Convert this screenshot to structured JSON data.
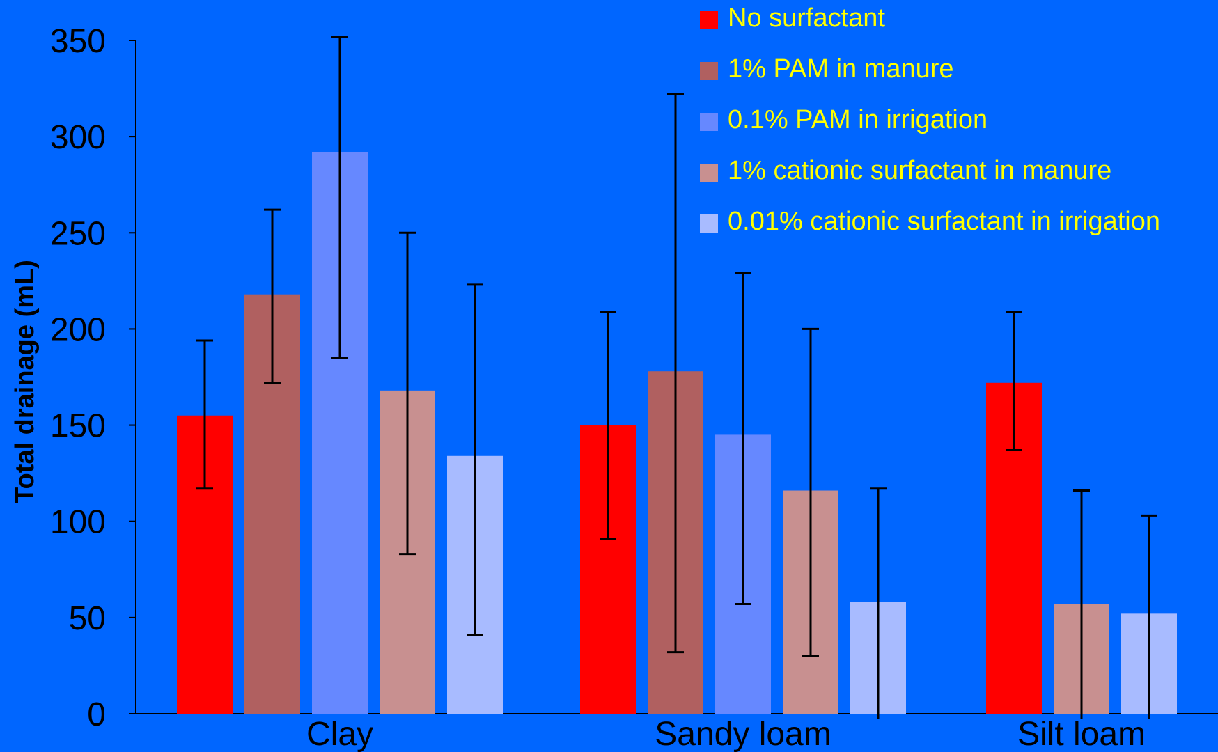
{
  "chart_data": {
    "type": "bar",
    "ylabel": "Total drainage (mL)",
    "xlabel": "",
    "ylim": [
      0,
      350
    ],
    "yticks": [
      0,
      50,
      100,
      150,
      200,
      250,
      300,
      350
    ],
    "categories": [
      "Clay",
      "Sandy loam",
      "Silt loam"
    ],
    "legend_position": "top-right",
    "grid": false,
    "background_color": "#0066FF",
    "series": [
      {
        "name": "No surfactant",
        "color": "#FF0000",
        "values": [
          155,
          150,
          172
        ],
        "error_low": [
          117,
          91,
          137
        ],
        "error_high": [
          194,
          209,
          209
        ]
      },
      {
        "name": "1% PAM in manure",
        "color": "#B06060",
        "values": [
          218,
          178,
          null
        ],
        "error_low": [
          172,
          32,
          null
        ],
        "error_high": [
          262,
          322,
          null
        ]
      },
      {
        "name": "0.1% PAM in irrigation",
        "color": "#6688FF",
        "values": [
          292,
          145,
          null
        ],
        "error_low": [
          185,
          57,
          null
        ],
        "error_high": [
          352,
          229,
          null
        ]
      },
      {
        "name": "1% cationic surfactant in manure",
        "color": "#C89090",
        "values": [
          168,
          116,
          57
        ],
        "error_low": [
          83,
          30,
          0
        ],
        "error_high": [
          250,
          200,
          116
        ]
      },
      {
        "name": "0.01% cationic surfactant in irrigation",
        "color": "#A8BBFF",
        "values": [
          134,
          58,
          52
        ],
        "error_low": [
          41,
          0,
          0
        ],
        "error_high": [
          223,
          117,
          103
        ]
      }
    ]
  }
}
